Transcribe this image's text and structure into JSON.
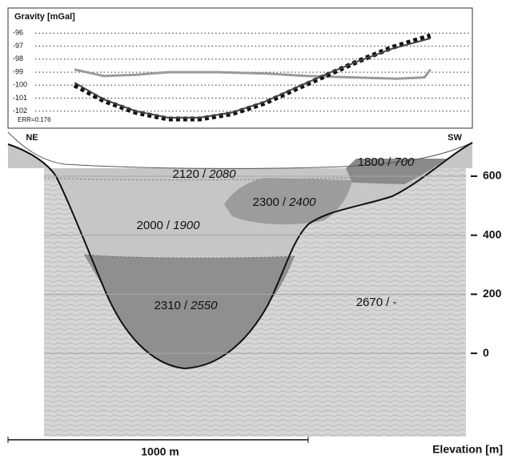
{
  "chart_data": [
    {
      "type": "line",
      "title": "Gravity [mGal]",
      "annotation": "ERR=0.176",
      "xlim": [
        0,
        1550
      ],
      "ylim": [
        -103,
        -95.3
      ],
      "yticks": [
        -96,
        -97,
        -98,
        -99,
        -100,
        -101,
        -102
      ],
      "grid": true,
      "series": [
        {
          "color": "#9a9a9a",
          "style": "solid",
          "width": 3,
          "x": [
            222,
            320,
            430,
            534,
            700,
            860,
            1000,
            1150,
            1300,
            1390,
            1410
          ],
          "values": [
            -98.8,
            -99.3,
            -99.2,
            -99.0,
            -99.0,
            -99.1,
            -99.3,
            -99.4,
            -99.5,
            -99.4,
            -98.8
          ]
        },
        {
          "color": "#111111",
          "style": "dashed",
          "width": 6,
          "x": [
            222,
            320,
            427,
            534,
            641,
            748,
            855,
            961,
            1068,
            1175,
            1282,
            1410
          ],
          "values": [
            -100.0,
            -101.2,
            -102.1,
            -102.6,
            -102.6,
            -102.2,
            -101.4,
            -100.3,
            -99.2,
            -98.1,
            -97.1,
            -96.2
          ]
        },
        {
          "color": "#444444",
          "style": "solid",
          "width": 2,
          "x": [
            222,
            320,
            427,
            534,
            641,
            748,
            855,
            961,
            1068,
            1175,
            1282,
            1410
          ],
          "values": [
            -99.8,
            -101.1,
            -102.0,
            -102.5,
            -102.5,
            -102.1,
            -101.3,
            -100.2,
            -99.1,
            -98.1,
            -97.2,
            -96.4
          ]
        }
      ]
    },
    {
      "type": "section",
      "ylabel": "Elevation [m]",
      "ylim": [
        -282,
        627
      ],
      "yticks": [
        0,
        200,
        400,
        600
      ],
      "grid": true,
      "left_label": "NE",
      "right_label": "SW",
      "scale_label": "1000 m",
      "separator": "/",
      "regions": [
        {
          "a": "2120",
          "b": "2080"
        },
        {
          "a": "2000",
          "b": "1900"
        },
        {
          "a": "2300",
          "b": "2400"
        },
        {
          "a": "1800",
          "b": "700"
        },
        {
          "a": "2310",
          "b": "2550"
        },
        {
          "a": "2670",
          "b": "-"
        }
      ]
    }
  ]
}
